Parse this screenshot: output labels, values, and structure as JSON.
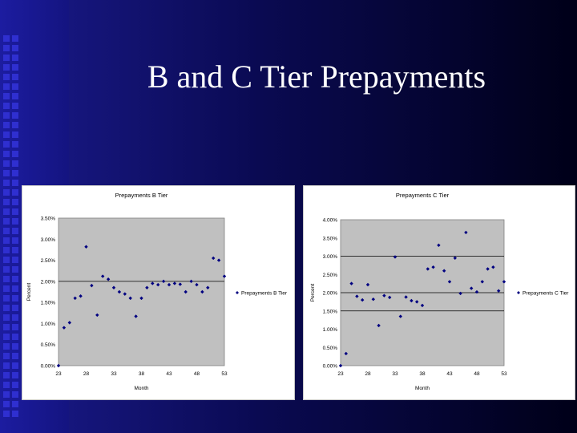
{
  "slide": {
    "title": "B and C Tier Prepayments"
  },
  "chart_data": [
    {
      "type": "scatter",
      "title": "Prepayments B Tier",
      "xlabel": "Month",
      "ylabel": "Percent",
      "legend": "Prepayments B Tier",
      "legend_position": "right",
      "xlim": [
        23,
        53
      ],
      "ylim": [
        0,
        3.5
      ],
      "xticks": [
        "23",
        "28",
        "33",
        "38",
        "43",
        "48",
        "53"
      ],
      "yticks": [
        "0.00%",
        "0.50%",
        "1.00%",
        "1.50%",
        "2.00%",
        "2.50%",
        "3.00%",
        "3.50%"
      ],
      "gridlines_at": [
        2.0
      ],
      "plot_background": "#c0c0c0",
      "marker_color": "#000080",
      "series": [
        {
          "name": "Prepayments B Tier",
          "x": [
            23,
            24,
            25,
            26,
            27,
            28,
            29,
            30,
            31,
            32,
            33,
            34,
            35,
            36,
            37,
            38,
            39,
            40,
            41,
            42,
            43,
            44,
            45,
            46,
            47,
            48,
            49,
            50,
            51,
            52,
            53
          ],
          "y": [
            0.0,
            0.9,
            1.02,
            1.6,
            1.65,
            2.82,
            1.9,
            1.2,
            2.12,
            2.05,
            1.85,
            1.75,
            1.7,
            1.6,
            1.17,
            1.6,
            1.85,
            1.95,
            1.92,
            2.0,
            1.92,
            1.95,
            1.93,
            1.75,
            2.0,
            1.92,
            1.75,
            1.85,
            2.55,
            2.5,
            2.12
          ]
        }
      ]
    },
    {
      "type": "scatter",
      "title": "Prepayments C Tier",
      "xlabel": "Month",
      "ylabel": "Percent",
      "legend": "Prepayments C Tier",
      "legend_position": "right",
      "xlim": [
        23,
        53
      ],
      "ylim": [
        0,
        4.0
      ],
      "xticks": [
        "23",
        "28",
        "33",
        "38",
        "43",
        "48",
        "53"
      ],
      "yticks": [
        "0.00%",
        "0.50%",
        "1.00%",
        "1.50%",
        "2.00%",
        "2.50%",
        "3.00%",
        "3.50%",
        "4.00%"
      ],
      "gridlines_at": [
        1.5,
        2.0,
        3.0
      ],
      "plot_background": "#c0c0c0",
      "marker_color": "#000080",
      "series": [
        {
          "name": "Prepayments C Tier",
          "x": [
            23,
            24,
            25,
            26,
            27,
            28,
            29,
            30,
            31,
            32,
            33,
            34,
            35,
            36,
            37,
            38,
            39,
            40,
            41,
            42,
            43,
            44,
            45,
            46,
            47,
            48,
            49,
            50,
            51,
            52,
            53
          ],
          "y": [
            0.0,
            0.33,
            2.25,
            1.9,
            1.8,
            2.22,
            1.82,
            1.1,
            1.92,
            1.87,
            2.98,
            1.35,
            1.88,
            1.78,
            1.75,
            1.65,
            2.65,
            2.7,
            3.3,
            2.6,
            2.3,
            2.95,
            1.98,
            3.65,
            2.12,
            2.02,
            2.3,
            2.65,
            2.7,
            2.05,
            2.3
          ]
        }
      ]
    }
  ]
}
